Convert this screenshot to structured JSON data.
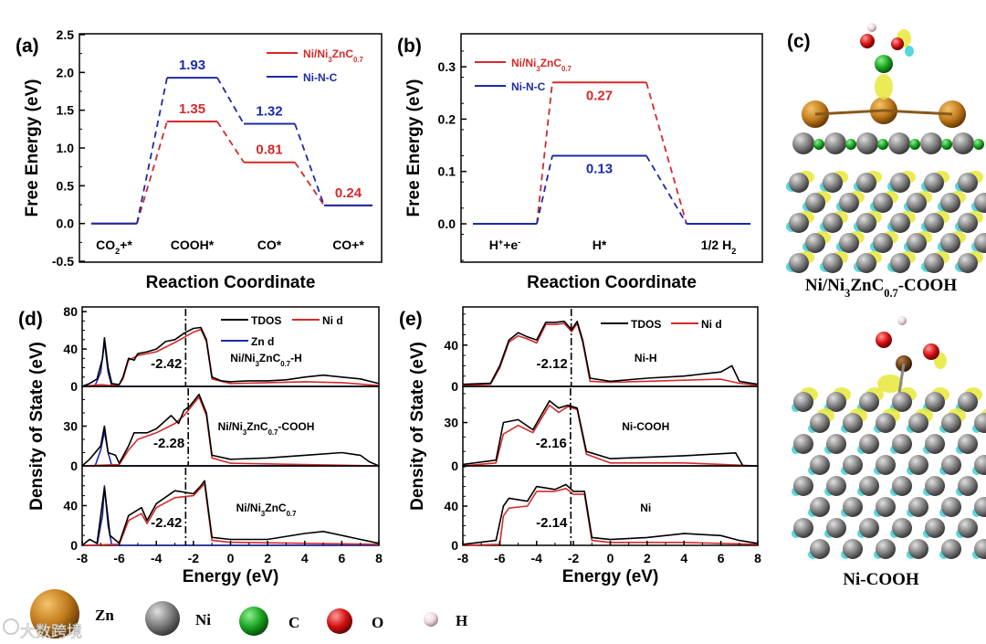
{
  "colors": {
    "red": "#d42a2a",
    "blue": "#1c2aa8",
    "black": "#000000",
    "zn": "#c07a1c",
    "ni": "#7d7d7d",
    "c": "#1aa320",
    "o": "#d41010",
    "h": "#e8d8dc",
    "iso_yellow": "#e8e83a",
    "iso_cyan": "#3ad0d8"
  },
  "chart_data": [
    {
      "panel": "(a)",
      "type": "line",
      "title": "",
      "xlabel": "Reaction Coordinate",
      "ylabel": "Free Energy (eV)",
      "ylim": [
        -0.5,
        2.5
      ],
      "yticks": [
        "-0.5",
        "0.0",
        "0.5",
        "1.0",
        "1.5",
        "2.0",
        "2.5"
      ],
      "categories": [
        "CO2+*",
        "COOH*",
        "CO*",
        "CO+*"
      ],
      "series": [
        {
          "name": "Ni/Ni3ZnC0.7",
          "color": "#d42a2a",
          "values": [
            0,
            1.35,
            0.81,
            0.24
          ],
          "labels": [
            "",
            "1.35",
            "0.81",
            "0.24"
          ]
        },
        {
          "name": "Ni-N-C",
          "color": "#1c2aa8",
          "values": [
            0,
            1.93,
            1.32,
            0.24
          ],
          "labels": [
            "",
            "1.93",
            "1.32",
            ""
          ]
        }
      ],
      "legend": "top-right"
    },
    {
      "panel": "(b)",
      "type": "line",
      "title": "",
      "xlabel": "Reaction Coordinate",
      "ylabel": "Free Energy (eV)",
      "ylim": [
        -0.07,
        0.36
      ],
      "yticks": [
        "0.0",
        "0.1",
        "0.2",
        "0.3"
      ],
      "categories": [
        "H++e-",
        "H*",
        "1/2 H2"
      ],
      "series": [
        {
          "name": "Ni/Ni3ZnC0.7",
          "color": "#d42a2a",
          "values": [
            0,
            0.27,
            0
          ],
          "labels": [
            "",
            "0.27",
            ""
          ]
        },
        {
          "name": "Ni-N-C",
          "color": "#1c2aa8",
          "values": [
            0,
            0.13,
            0
          ],
          "labels": [
            "",
            "0.13",
            ""
          ]
        }
      ],
      "legend": "top-left"
    },
    {
      "panel": "(d)",
      "type": "line",
      "xlabel": "Energy (eV)",
      "ylabel": "Density of State (eV)",
      "xlim": [
        -8,
        8
      ],
      "xticks": [
        "-8",
        "-6",
        "-4",
        "-2",
        "0",
        "2",
        "4",
        "6",
        "8"
      ],
      "legend": [
        "TDOS",
        "Ni d",
        "Zn d"
      ],
      "subplots": [
        {
          "label": "Ni/Ni3ZnC0.7-H",
          "d_band_center": -2.42,
          "d_band_label": "-2.42",
          "ylim": [
            0,
            85
          ],
          "yticks": [
            "0",
            "40",
            "80"
          ],
          "series": [
            {
              "name": "TDOS",
              "color": "#000000",
              "x": [
                -8,
                -7.6,
                -7.2,
                -6.9,
                -6.8,
                -6.6,
                -6.4,
                -6,
                -5.8,
                -5.5,
                -5.2,
                -5,
                -4.5,
                -4,
                -3.5,
                -3,
                -2.5,
                -2,
                -1.6,
                -1.3,
                -1,
                -0.5,
                0,
                1,
                2,
                3,
                4,
                5,
                6,
                7,
                8
              ],
              "y": [
                0,
                3,
                8,
                30,
                52,
                20,
                3,
                2,
                10,
                30,
                28,
                35,
                37,
                40,
                48,
                50,
                57,
                62,
                63,
                50,
                10,
                6,
                5,
                6,
                6,
                7,
                10,
                12,
                10,
                8,
                3
              ]
            },
            {
              "name": "Ni d",
              "color": "#d42a2a",
              "x": [
                -8,
                -7,
                -6.5,
                -6,
                -5.8,
                -5.5,
                -5,
                -4,
                -3,
                -2,
                -1.6,
                -1.3,
                -1,
                0,
                2,
                4,
                6,
                8
              ],
              "y": [
                0,
                2,
                1,
                2,
                8,
                28,
                33,
                37,
                47,
                58,
                61,
                48,
                8,
                3,
                4,
                5,
                4,
                1
              ]
            },
            {
              "name": "Zn d",
              "color": "#1c2aa8",
              "x": [
                -8,
                -7.3,
                -7,
                -6.8,
                -6.6,
                -6.4,
                8
              ],
              "y": [
                0,
                1,
                15,
                48,
                15,
                0,
                0
              ]
            }
          ]
        },
        {
          "label": "Ni/Ni3ZnC0.7-COOH",
          "d_band_center": -2.28,
          "d_band_label": "-2.28",
          "ylim": [
            0,
            60
          ],
          "yticks": [
            "0",
            "30"
          ],
          "series": [
            {
              "name": "TDOS",
              "color": "#000000",
              "x": [
                -8,
                -7.6,
                -7,
                -6.8,
                -6.6,
                -6.2,
                -6,
                -5.5,
                -5.2,
                -4.5,
                -4,
                -3.2,
                -2.8,
                -2.5,
                -2.2,
                -1.7,
                -1.3,
                -1,
                0,
                2,
                4,
                6,
                7,
                7.5,
                8
              ],
              "y": [
                0,
                5,
                15,
                30,
                10,
                8,
                2,
                15,
                25,
                25,
                28,
                38,
                32,
                42,
                45,
                54,
                40,
                8,
                5,
                6,
                8,
                10,
                8,
                3,
                0
              ]
            },
            {
              "name": "Ni d",
              "color": "#d42a2a",
              "x": [
                -8,
                -6,
                -5.5,
                -5,
                -4,
                -3,
                -2.5,
                -1.7,
                -1.3,
                -1,
                0,
                8
              ],
              "y": [
                0,
                1,
                12,
                20,
                25,
                32,
                38,
                52,
                38,
                6,
                2,
                0
              ]
            },
            {
              "name": "Zn d",
              "color": "#1c2aa8",
              "x": [
                -8,
                -7.3,
                -7,
                -6.8,
                -6.6,
                -6.4,
                8
              ],
              "y": [
                0,
                0,
                12,
                26,
                10,
                0,
                0
              ]
            }
          ]
        },
        {
          "label": "Ni/Ni3ZnC0.7",
          "d_band_center": -2.42,
          "d_band_label": "-2.42",
          "ylim": [
            0,
            80
          ],
          "yticks": [
            "0",
            "40"
          ],
          "series": [
            {
              "name": "TDOS",
              "color": "#000000",
              "x": [
                -8,
                -7.6,
                -7.2,
                -6.8,
                -6.5,
                -6,
                -5.5,
                -4.8,
                -4.5,
                -4,
                -3,
                -2,
                -1.6,
                -1.4,
                -1,
                0,
                2,
                4,
                5,
                6,
                7,
                8
              ],
              "y": [
                0,
                6,
                2,
                58,
                10,
                2,
                30,
                38,
                25,
                42,
                55,
                52,
                60,
                65,
                8,
                6,
                6,
                12,
                14,
                10,
                6,
                2
              ]
            },
            {
              "name": "Ni d",
              "color": "#d42a2a",
              "x": [
                -8,
                -6,
                -5.5,
                -4.8,
                -4.5,
                -4,
                -3,
                -2,
                -1.6,
                -1.4,
                -1,
                0,
                8
              ],
              "y": [
                0,
                1,
                25,
                32,
                22,
                38,
                48,
                50,
                58,
                62,
                5,
                3,
                1
              ]
            },
            {
              "name": "Zn d",
              "color": "#1c2aa8",
              "x": [
                -8,
                -7.2,
                -6.9,
                -6.8,
                -6.6,
                -6.4,
                8
              ],
              "y": [
                0,
                0,
                30,
                60,
                20,
                0,
                0
              ]
            }
          ]
        }
      ]
    },
    {
      "panel": "(e)",
      "type": "line",
      "xlabel": "Energy (eV)",
      "ylabel": "Density of State (eV)",
      "xlim": [
        -8,
        8
      ],
      "xticks": [
        "-8",
        "-6",
        "-4",
        "-2",
        "0",
        "2",
        "4",
        "6",
        "8"
      ],
      "legend": [
        "TDOS",
        "Ni d"
      ],
      "subplots": [
        {
          "label": "Ni-H",
          "d_band_center": -2.12,
          "d_band_label": "-2.12",
          "ylim": [
            0,
            77
          ],
          "yticks": [
            "0",
            "40"
          ],
          "series": [
            {
              "name": "TDOS",
              "color": "#000000",
              "x": [
                -8,
                -6.5,
                -6,
                -5.5,
                -5,
                -4.5,
                -4,
                -3.5,
                -3,
                -2.5,
                -2.1,
                -1.8,
                -1.5,
                -1.1,
                0,
                2,
                4,
                5,
                6,
                6.6,
                7,
                8
              ],
              "y": [
                2,
                3,
                20,
                45,
                52,
                48,
                45,
                62,
                62,
                63,
                55,
                63,
                45,
                8,
                5,
                8,
                10,
                12,
                14,
                20,
                5,
                2
              ]
            },
            {
              "name": "Ni d",
              "color": "#d42a2a",
              "x": [
                -8,
                -6.5,
                -6,
                -5.5,
                -5,
                -4.5,
                -4,
                -3.5,
                -3,
                -2.5,
                -2.1,
                -1.8,
                -1.5,
                -1.1,
                0,
                2,
                4,
                6,
                7,
                8
              ],
              "y": [
                1,
                2,
                18,
                43,
                49,
                46,
                42,
                60,
                60,
                61,
                53,
                61,
                43,
                5,
                4,
                5,
                6,
                7,
                3,
                1
              ]
            }
          ]
        },
        {
          "label": "Ni-COOH",
          "d_band_center": -2.16,
          "d_band_label": "-2.16",
          "ylim": [
            0,
            55
          ],
          "yticks": [
            "0",
            "30"
          ],
          "series": [
            {
              "name": "TDOS",
              "color": "#000000",
              "x": [
                -8,
                -6.2,
                -5.8,
                -5,
                -4.2,
                -3.3,
                -2.8,
                -2.3,
                -1.8,
                -1.3,
                0,
                4,
                6.8,
                7.2,
                8
              ],
              "y": [
                1,
                4,
                30,
                32,
                25,
                45,
                40,
                42,
                40,
                10,
                5,
                7,
                9,
                0,
                0
              ]
            },
            {
              "name": "Ni d",
              "color": "#d42a2a",
              "x": [
                -8,
                -6.2,
                -5.8,
                -5,
                -4.2,
                -3.3,
                -2.8,
                -2.3,
                -1.8,
                -1.3,
                0,
                4,
                8
              ],
              "y": [
                0,
                2,
                22,
                28,
                23,
                42,
                37,
                41,
                39,
                8,
                2,
                2,
                0
              ]
            }
          ]
        },
        {
          "label": "Ni",
          "d_band_center": -2.14,
          "d_band_label": "-2.14",
          "ylim": [
            0,
            81
          ],
          "yticks": [
            "0",
            "40"
          ],
          "series": [
            {
              "name": "TDOS",
              "color": "#000000",
              "x": [
                -8,
                -6.2,
                -5.8,
                -5.5,
                -4.5,
                -4,
                -3,
                -2.4,
                -2,
                -1.4,
                -1,
                0,
                2,
                4,
                5,
                6,
                7,
                8
              ],
              "y": [
                1,
                5,
                40,
                48,
                45,
                60,
                57,
                62,
                55,
                55,
                8,
                6,
                8,
                12,
                11,
                10,
                5,
                2
              ]
            },
            {
              "name": "Ni d",
              "color": "#d42a2a",
              "x": [
                -8,
                -6,
                -5.8,
                -5.5,
                -4.5,
                -4,
                -3,
                -2.4,
                -2,
                -1.4,
                -1,
                0,
                4,
                8
              ],
              "y": [
                0,
                1,
                30,
                38,
                40,
                55,
                55,
                58,
                52,
                52,
                5,
                3,
                3,
                1
              ]
            }
          ]
        }
      ]
    }
  ],
  "panel_c": {
    "label": "(c)",
    "caption_top": "Ni/Ni3ZnC0.7-COOH",
    "caption_bottom": "Ni-COOH"
  },
  "atom_legend": [
    {
      "element": "Zn",
      "color": "#c07a1c"
    },
    {
      "element": "Ni",
      "color": "#7d7d7d"
    },
    {
      "element": "C",
      "color": "#1aa320"
    },
    {
      "element": "O",
      "color": "#d41010"
    },
    {
      "element": "H",
      "color": "#e8d8dc"
    }
  ],
  "watermark": "大数跨境"
}
